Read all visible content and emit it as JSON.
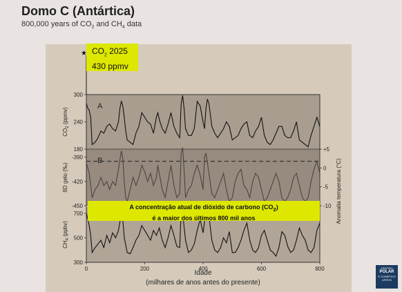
{
  "header": {
    "title": "Domo C (Antártica)",
    "subtitle_pre": "800,000 years of CO",
    "subtitle_mid": " and CH",
    "subtitle_post": " data",
    "sub2": "2",
    "sub4": "4"
  },
  "co2_box": {
    "star": "★",
    "label_pre": "CO",
    "label_sub": "2",
    "label_post": " 2025",
    "value": "430 ppmv"
  },
  "banner": {
    "line1_pre": "A concentração atual de dióxido de carbono (CO",
    "line1_sub": "2",
    "line1_post": ")",
    "line2": "é a maior dos últimos 800 mil anos"
  },
  "logo": {
    "line1": "CENTRO",
    "line2": "POLAR",
    "line3": "E CLIMÁTICO",
    "line4": "UFRGS"
  },
  "colors": {
    "background": "#e9e4e1",
    "panel": "#d6cbbb",
    "highlight": "#dde700",
    "trace": "#111111",
    "dD_trace": "#4a4440"
  },
  "chart_data": {
    "type": "line",
    "x_axis": {
      "label": "Idade",
      "sublabel": "(milhares de anos antes do presente)",
      "ticks": [
        0,
        200,
        400,
        600,
        800
      ],
      "range": [
        0,
        800
      ]
    },
    "panels": [
      {
        "id": "A",
        "ylabel": "CO2 (ppmv)",
        "ylabel_pre": "CO",
        "ylabel_sub": "2",
        "ylabel_post": " (ppmv)",
        "yticks": [
          180,
          240,
          300
        ],
        "ylim": [
          180,
          300
        ],
        "series": [
          {
            "x": [
              0,
              5,
              10,
              15,
              20,
              30,
              40,
              50,
              60,
              70,
              80,
              90,
              100,
              110,
              115,
              120,
              125,
              130,
              135,
              140,
              150,
              160,
              170,
              180,
              190,
              200,
              210,
              220,
              230,
              240,
              245,
              250,
              260,
              270,
              280,
              290,
              300,
              310,
              320,
              325,
              330,
              335,
              340,
              350,
              360,
              370,
              380,
              390,
              400,
              405,
              410,
              415,
              420,
              430,
              440,
              450,
              460,
              470,
              480,
              490,
              500,
              510,
              520,
              530,
              540,
              550,
              560,
              570,
              580,
              590,
              600,
              610,
              620,
              630,
              640,
              650,
              660,
              670,
              680,
              690,
              700,
              710,
              720,
              730,
              740,
              750,
              760,
              770,
              780,
              790,
              800
            ],
            "values": [
              280,
              270,
              265,
              250,
              190,
              195,
              205,
              220,
              215,
              230,
              235,
              225,
              220,
              240,
              270,
              285,
              275,
              250,
              220,
              200,
              195,
              190,
              215,
              230,
              260,
              250,
              240,
              235,
              215,
              250,
              260,
              245,
              225,
              215,
              235,
              260,
              230,
              215,
              205,
              280,
              298,
              270,
              225,
              210,
              210,
              225,
              285,
              275,
              240,
              225,
              270,
              290,
              280,
              230,
              215,
              205,
              215,
              225,
              240,
              230,
              200,
              205,
              210,
              225,
              235,
              240,
              210,
              205,
              220,
              230,
              250,
              210,
              195,
              190,
              200,
              215,
              230,
              230,
              210,
              205,
              205,
              220,
              240,
              200,
              195,
              190,
              185,
              210,
              230,
              250,
              230
            ]
          }
        ]
      },
      {
        "id": "B",
        "ylabel": "δD gelo (‰)",
        "yticks": [
          -450,
          -420,
          -390
        ],
        "ylim": [
          -450,
          -380
        ],
        "y2label": "Anomalia temperatura (°C)",
        "y2ticks": [
          -10,
          -5,
          0,
          5
        ],
        "y2lim": [
          -10,
          5
        ],
        "reference_value": -395,
        "series": [
          {
            "x": [
              0,
              10,
              20,
              30,
              40,
              50,
              60,
              70,
              80,
              90,
              100,
              110,
              120,
              125,
              130,
              135,
              140,
              150,
              160,
              170,
              180,
              190,
              200,
              210,
              220,
              230,
              240,
              245,
              250,
              260,
              270,
              280,
              290,
              300,
              310,
              320,
              325,
              330,
              335,
              340,
              350,
              360,
              370,
              380,
              390,
              400,
              405,
              410,
              420,
              430,
              440,
              450,
              460,
              470,
              480,
              490,
              500,
              510,
              520,
              530,
              540,
              550,
              560,
              570,
              580,
              590,
              600,
              610,
              620,
              630,
              640,
              650,
              660,
              670,
              680,
              690,
              700,
              710,
              720,
              730,
              740,
              750,
              760,
              770,
              780,
              790,
              800
            ],
            "values": [
              -397,
              -410,
              -440,
              -430,
              -425,
              -415,
              -425,
              -420,
              -430,
              -420,
              -425,
              -405,
              -382,
              -392,
              -420,
              -440,
              -445,
              -430,
              -415,
              -425,
              -415,
              -400,
              -408,
              -420,
              -410,
              -425,
              -415,
              -400,
              -410,
              -430,
              -440,
              -420,
              -400,
              -425,
              -440,
              -435,
              -385,
              -378,
              -405,
              -440,
              -430,
              -425,
              -410,
              -400,
              -412,
              -430,
              -390,
              -385,
              -410,
              -435,
              -440,
              -430,
              -420,
              -410,
              -430,
              -445,
              -440,
              -420,
              -410,
              -405,
              -425,
              -430,
              -440,
              -420,
              -410,
              -415,
              -430,
              -445,
              -440,
              -430,
              -420,
              -410,
              -420,
              -440,
              -445,
              -440,
              -430,
              -415,
              -410,
              -425,
              -440,
              -445,
              -440,
              -420,
              -405,
              -395,
              -410
            ]
          }
        ]
      },
      {
        "id": "C",
        "ylabel": "CH4 (ppbv)",
        "ylabel_pre": "CH",
        "ylabel_sub": "4",
        "ylabel_post": " (ppbv)",
        "yticks": [
          300,
          500,
          700
        ],
        "ylim": [
          300,
          750
        ],
        "series": [
          {
            "x": [
              0,
              5,
              10,
              15,
              20,
              25,
              30,
              40,
              50,
              60,
              70,
              80,
              90,
              100,
              110,
              120,
              125,
              130,
              140,
              150,
              160,
              170,
              180,
              190,
              200,
              210,
              220,
              230,
              240,
              250,
              260,
              270,
              280,
              290,
              300,
              310,
              320,
              325,
              330,
              340,
              350,
              360,
              370,
              380,
              390,
              400,
              410,
              420,
              430,
              440,
              450,
              460,
              470,
              480,
              490,
              500,
              510,
              520,
              530,
              540,
              550,
              560,
              570,
              580,
              590,
              600,
              610,
              620,
              630,
              640,
              650,
              660,
              670,
              680,
              690,
              700,
              710,
              720,
              730,
              740,
              750,
              760,
              770,
              780,
              790,
              800
            ],
            "values": [
              700,
              650,
              600,
              520,
              380,
              400,
              420,
              450,
              480,
              420,
              520,
              460,
              540,
              500,
              560,
              700,
              650,
              500,
              380,
              370,
              420,
              480,
              520,
              600,
              560,
              520,
              480,
              560,
              520,
              580,
              480,
              420,
              500,
              600,
              520,
              430,
              420,
              720,
              700,
              480,
              380,
              400,
              450,
              560,
              650,
              540,
              720,
              680,
              480,
              400,
              380,
              420,
              500,
              460,
              550,
              380,
              380,
              420,
              480,
              560,
              620,
              480,
              400,
              380,
              420,
              520,
              560,
              480,
              400,
              380,
              350,
              420,
              550,
              520,
              430,
              380,
              400,
              480,
              580,
              520,
              480,
              400,
              380,
              420,
              560,
              620
            ]
          }
        ]
      }
    ]
  }
}
